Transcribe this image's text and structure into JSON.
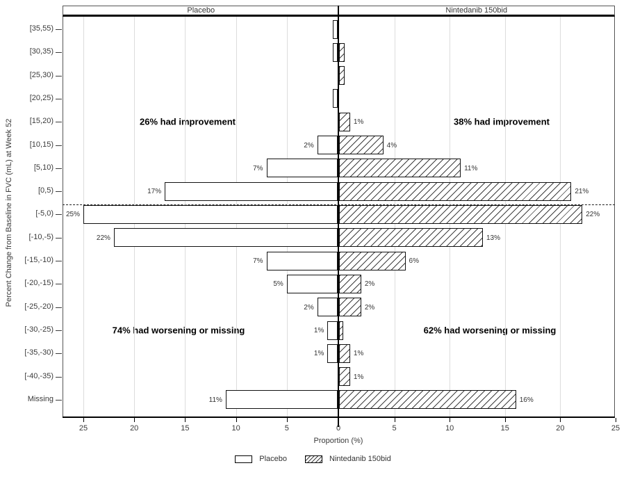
{
  "panels": {
    "left": "Placebo",
    "right": "Nintedanib 150bid"
  },
  "axes": {
    "x_label": "Proportion (%)",
    "y_label": "Percent Change from Baseline in FVC (mL) at Week 52",
    "x_ticks": [
      "25",
      "20",
      "15",
      "10",
      "5",
      "0",
      "5",
      "10",
      "15",
      "20",
      "25"
    ],
    "x_max_each_side": 25
  },
  "annotations": {
    "left_top": "26% had improvement",
    "right_top": "38% had improvement",
    "left_bottom": "74% had worsening or missing",
    "right_bottom": "62% had worsening or missing"
  },
  "legend": {
    "items": [
      {
        "label": "Placebo",
        "pattern": "open"
      },
      {
        "label": "Nintedanib 150bid",
        "pattern": "hatched"
      }
    ]
  },
  "chart_data": {
    "type": "bar",
    "orientation": "horizontal-bilateral",
    "title": "",
    "xlabel": "Proportion (%)",
    "ylabel": "Percent Change from Baseline in FVC (mL) at Week 52",
    "xlim_each_side": [
      0,
      25
    ],
    "grid": "vertical, every 5%",
    "reference_line": "dashed horizontal line at zero boundary between [0,5) and [-5,0)",
    "categories": [
      "[35,55)",
      "[30,35)",
      "[25,30)",
      "[20,25)",
      "[15,20)",
      "[10,15)",
      "[5,10)",
      "[0,5)",
      "[-5,0)",
      "[-10,-5)",
      "[-15,-10)",
      "[-20,-15)",
      "[-25,-20)",
      "[-30,-25)",
      "[-35,-30)",
      "[-40,-35)",
      "Missing"
    ],
    "series": [
      {
        "name": "Placebo",
        "side": "left",
        "pattern": "open",
        "values": [
          0.5,
          0.5,
          0,
          0.5,
          0,
          2,
          7,
          17,
          25,
          22,
          7,
          5,
          2,
          1,
          1,
          0,
          11
        ],
        "labels": [
          "",
          "",
          "",
          "",
          "",
          "2%",
          "7%",
          "17%",
          "25%",
          "22%",
          "7%",
          "5%",
          "2%",
          "1%",
          "1%",
          "",
          "11%"
        ]
      },
      {
        "name": "Nintedanib 150bid",
        "side": "right",
        "pattern": "hatched",
        "values": [
          0,
          0.5,
          0.5,
          0,
          1,
          4,
          11,
          21,
          22,
          13,
          6,
          2,
          2,
          0.4,
          1,
          1,
          16
        ],
        "labels": [
          "",
          "",
          "",
          "",
          "1%",
          "4%",
          "11%",
          "21%",
          "22%",
          "13%",
          "6%",
          "2%",
          "2%",
          "",
          "1%",
          "1%",
          "16%"
        ]
      }
    ]
  }
}
